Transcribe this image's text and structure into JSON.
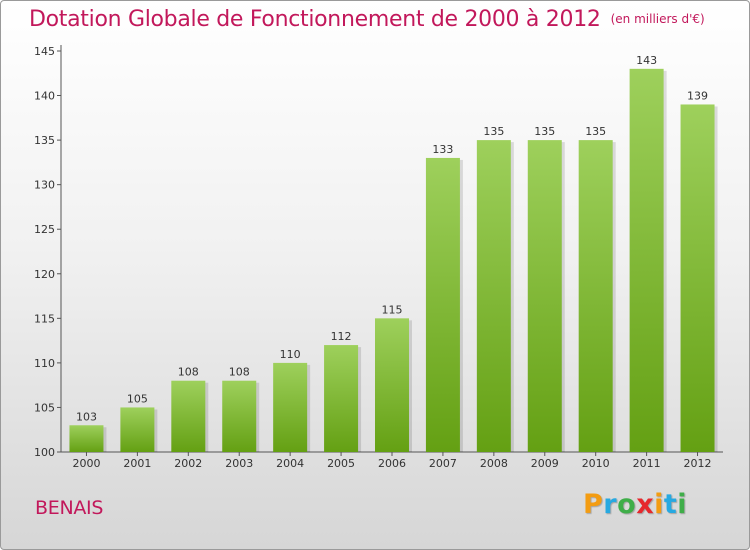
{
  "title": {
    "main": "Dotation Globale de Fonctionnement de 2000 à 2012",
    "unit": "(en milliers d'€)"
  },
  "commune": "BENAIS",
  "logo": {
    "letters": [
      "P",
      "r",
      "o",
      "x",
      "i",
      "t",
      "i"
    ],
    "colors": [
      "#f39c12",
      "#27a9e1",
      "#3fae49",
      "#e6282d",
      "#f39c12",
      "#27a9e1",
      "#3fae49"
    ]
  },
  "colors": {
    "title": "#c2185b",
    "bar_light": "#9ed05c",
    "bar_dark": "#64a013"
  },
  "chart_data": {
    "type": "bar",
    "categories": [
      "2000",
      "2001",
      "2002",
      "2003",
      "2004",
      "2005",
      "2006",
      "2007",
      "2008",
      "2009",
      "2010",
      "2011",
      "2012"
    ],
    "values": [
      103,
      105,
      108,
      108,
      110,
      112,
      115,
      133,
      135,
      135,
      135,
      143,
      139
    ],
    "ylim": [
      100,
      145
    ],
    "yticks": [
      100,
      105,
      110,
      115,
      120,
      125,
      130,
      135,
      140,
      145
    ],
    "grid": false,
    "data_labels": true
  }
}
